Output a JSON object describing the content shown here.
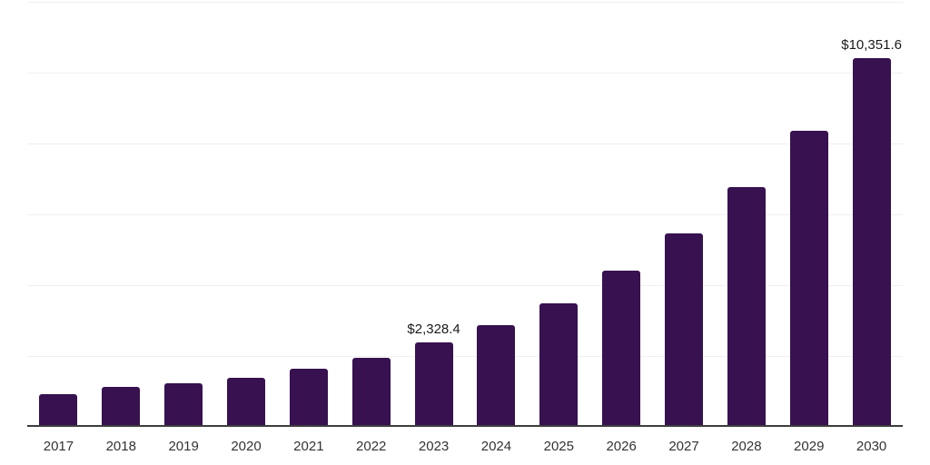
{
  "chart_data": {
    "type": "bar",
    "categories": [
      "2017",
      "2018",
      "2019",
      "2020",
      "2021",
      "2022",
      "2023",
      "2024",
      "2025",
      "2026",
      "2027",
      "2028",
      "2029",
      "2030"
    ],
    "values": [
      870,
      1090,
      1175,
      1345,
      1600,
      1900,
      2328.4,
      2810,
      3430,
      4360,
      5400,
      6715,
      8300,
      10351.6
    ],
    "value_labels": {
      "2023": "$2,328.4",
      "2030": "$10,351.6"
    },
    "title": "",
    "xlabel": "",
    "ylabel": "",
    "ylim": [
      0,
      12000
    ],
    "gridline_step": 2000,
    "grid": "horizontal",
    "y_tick_labels_visible": false,
    "legend": "none",
    "colors": {
      "bar": "#371150",
      "axis_line": "#3d3d3d",
      "gridline": "#f0f0f0",
      "value_label": "#1a1a1a",
      "tick_label": "#333333",
      "background": "#ffffff"
    }
  }
}
